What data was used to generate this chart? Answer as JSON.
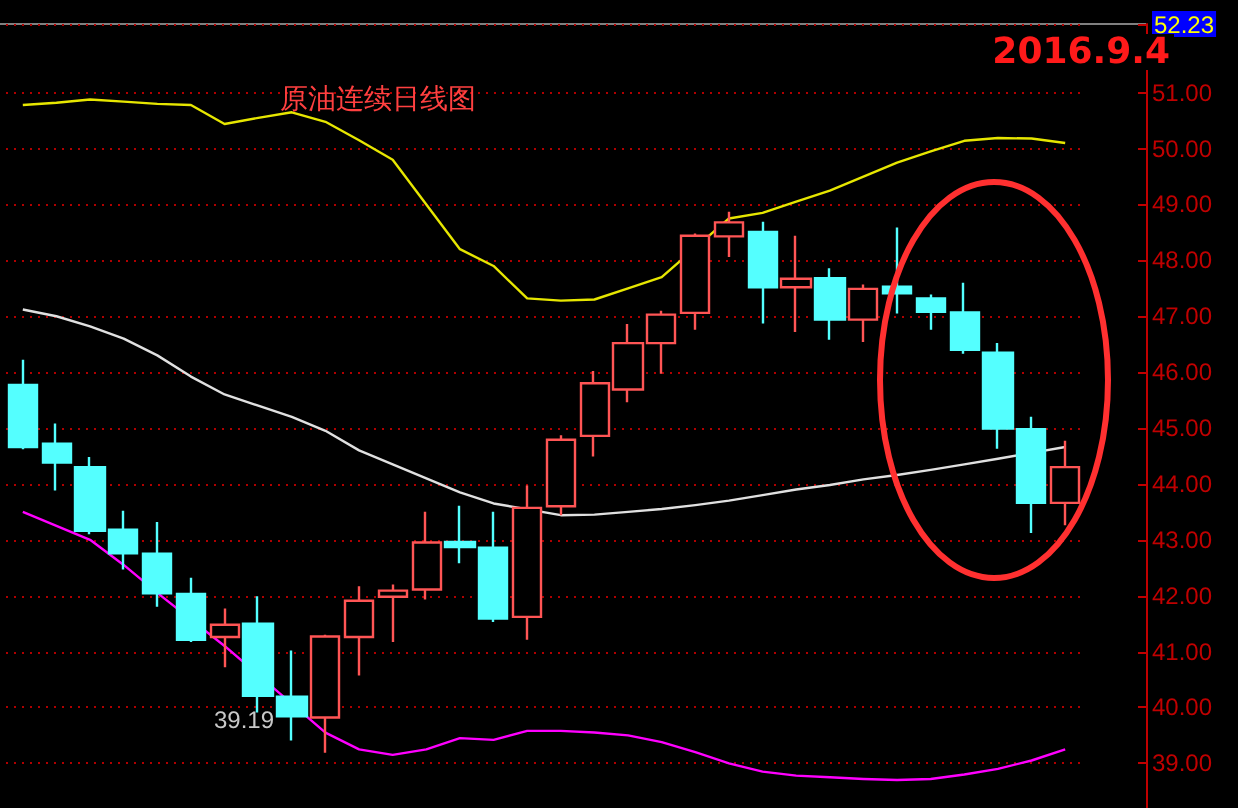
{
  "chart_data": {
    "type": "candlestick",
    "title": "2016.9.4",
    "subtitle": "原油连续日线图",
    "annotations": [
      "39.19"
    ],
    "categories": [
      null,
      null,
      null,
      null,
      null,
      null,
      null,
      null,
      null,
      null,
      null,
      null,
      null,
      null,
      null,
      null,
      null,
      null,
      null,
      null,
      null,
      null,
      null,
      null,
      null,
      null,
      null,
      null,
      null,
      null,
      null,
      null
    ],
    "series": [
      {
        "ohlc": [
          [
            45.77,
            46.22,
            44.62,
            44.66
          ],
          [
            44.72,
            45.08,
            43.88,
            44.38
          ],
          [
            44.3,
            44.48,
            43.1,
            43.16
          ],
          [
            43.18,
            43.52,
            42.47,
            42.76
          ],
          [
            42.75,
            43.32,
            41.8,
            42.04
          ],
          [
            42.03,
            42.32,
            41.17,
            41.21
          ],
          [
            41.26,
            41.77,
            40.72,
            41.48
          ],
          [
            41.5,
            41.99,
            39.91,
            40.21
          ],
          [
            40.19,
            41.02,
            39.41,
            39.84
          ],
          [
            39.82,
            41.3,
            39.19,
            41.27
          ],
          [
            41.26,
            42.17,
            40.57,
            41.91
          ],
          [
            41.98,
            42.2,
            41.17,
            42.09
          ],
          [
            42.11,
            43.5,
            41.93,
            42.95
          ],
          [
            42.96,
            43.61,
            42.58,
            42.87
          ],
          [
            42.86,
            43.5,
            41.53,
            41.59
          ],
          [
            41.62,
            43.97,
            41.21,
            43.57
          ],
          [
            43.6,
            44.87,
            43.44,
            44.79
          ],
          [
            44.86,
            46.02,
            44.49,
            45.8
          ],
          [
            45.69,
            46.86,
            45.46,
            46.52
          ],
          [
            46.52,
            47.1,
            45.97,
            47.03
          ],
          [
            47.06,
            48.48,
            46.76,
            48.44
          ],
          [
            48.43,
            48.87,
            48.06,
            48.68
          ],
          [
            48.51,
            48.69,
            46.87,
            47.52
          ],
          [
            47.52,
            48.44,
            46.72,
            47.67
          ],
          [
            47.68,
            47.86,
            46.58,
            46.94
          ],
          [
            46.94,
            47.57,
            46.54,
            47.49
          ],
          [
            47.53,
            48.59,
            47.05,
            47.41
          ],
          [
            47.32,
            47.39,
            46.76,
            47.08
          ],
          [
            47.07,
            47.6,
            46.33,
            46.4
          ],
          [
            46.35,
            46.52,
            44.63,
            44.99
          ],
          [
            44.98,
            45.2,
            43.12,
            43.66
          ],
          [
            43.66,
            44.77,
            43.26,
            44.3
          ]
        ],
        "colors": [
          "#54ffff",
          "#54ffff",
          "#54ffff",
          "#54ffff",
          "#54ffff",
          "#54ffff",
          "#ff5555",
          "#54ffff",
          "#54ffff",
          "#ff5555",
          "#ff5555",
          "#ff5555",
          "#ff5555",
          "#54ffff",
          "#54ffff",
          "#ff5555",
          "#ff5555",
          "#ff5555",
          "#ff5555",
          "#ff5555",
          "#ff5555",
          "#ff5555",
          "#54ffff",
          "#ff5555",
          "#54ffff",
          "#ff5555",
          "#54ffff",
          "#54ffff",
          "#54ffff",
          "#54ffff",
          "#54ffff",
          "#ff5555"
        ]
      },
      {
        "type": "line",
        "color": "#e6e600",
        "values": [
          50.78,
          50.82,
          50.88,
          50.84,
          50.8,
          50.78,
          50.44,
          50.55,
          50.65,
          50.48,
          50.15,
          49.8,
          49.0,
          48.2,
          47.9,
          47.32,
          47.28,
          47.3,
          47.5,
          47.7,
          null,
          48.75,
          48.85,
          49.05,
          49.25,
          49.5,
          49.75,
          49.95,
          50.14,
          50.19,
          50.18,
          50.1
        ]
      },
      {
        "type": "line",
        "color": "#e0e0e0",
        "values": [
          47.12,
          47.0,
          46.82,
          46.6,
          46.3,
          45.92,
          45.6,
          45.4,
          45.2,
          44.95,
          44.6,
          44.35,
          44.1,
          43.85,
          43.65,
          null,
          43.44,
          43.45,
          43.5,
          43.55,
          43.62,
          43.7,
          43.8,
          43.9,
          43.98,
          44.08,
          44.16,
          44.25,
          44.35,
          44.45,
          null,
          44.66
        ]
      },
      {
        "type": "line",
        "color": "#ff00ff",
        "values": [
          43.5,
          43.25,
          43.0,
          42.55,
          42.05,
          null,
          41.1,
          null,
          null,
          39.55,
          39.25,
          39.15,
          39.25,
          39.45,
          39.42,
          39.58,
          39.58,
          39.55,
          39.5,
          39.38,
          39.2,
          39.0,
          38.85,
          38.78,
          38.75,
          38.72,
          38.7,
          38.72,
          38.8,
          38.9,
          39.05,
          39.25
        ]
      }
    ],
    "ylim": [
      38.2,
      52.23
    ],
    "yticks": [
      {
        "value": 39,
        "label": "39.00"
      },
      {
        "value": 40,
        "label": "40.00"
      },
      {
        "value": 41,
        "label": "41.00"
      },
      {
        "value": 42,
        "label": "42.00"
      },
      {
        "value": 43,
        "label": "43.00"
      },
      {
        "value": 44,
        "label": "44.00"
      },
      {
        "value": 45,
        "label": "45.00"
      },
      {
        "value": 46,
        "label": "46.00"
      },
      {
        "value": 47,
        "label": "47.00"
      },
      {
        "value": 48,
        "label": "48.00"
      },
      {
        "value": 49,
        "label": "49.00"
      },
      {
        "value": 50,
        "label": "50.00"
      },
      {
        "value": 51,
        "label": "51.00"
      },
      {
        "value": 52.23,
        "label": "52.23"
      }
    ],
    "grid": "y",
    "marker": "none",
    "line_style": "solid",
    "tick_labels": "y"
  }
}
